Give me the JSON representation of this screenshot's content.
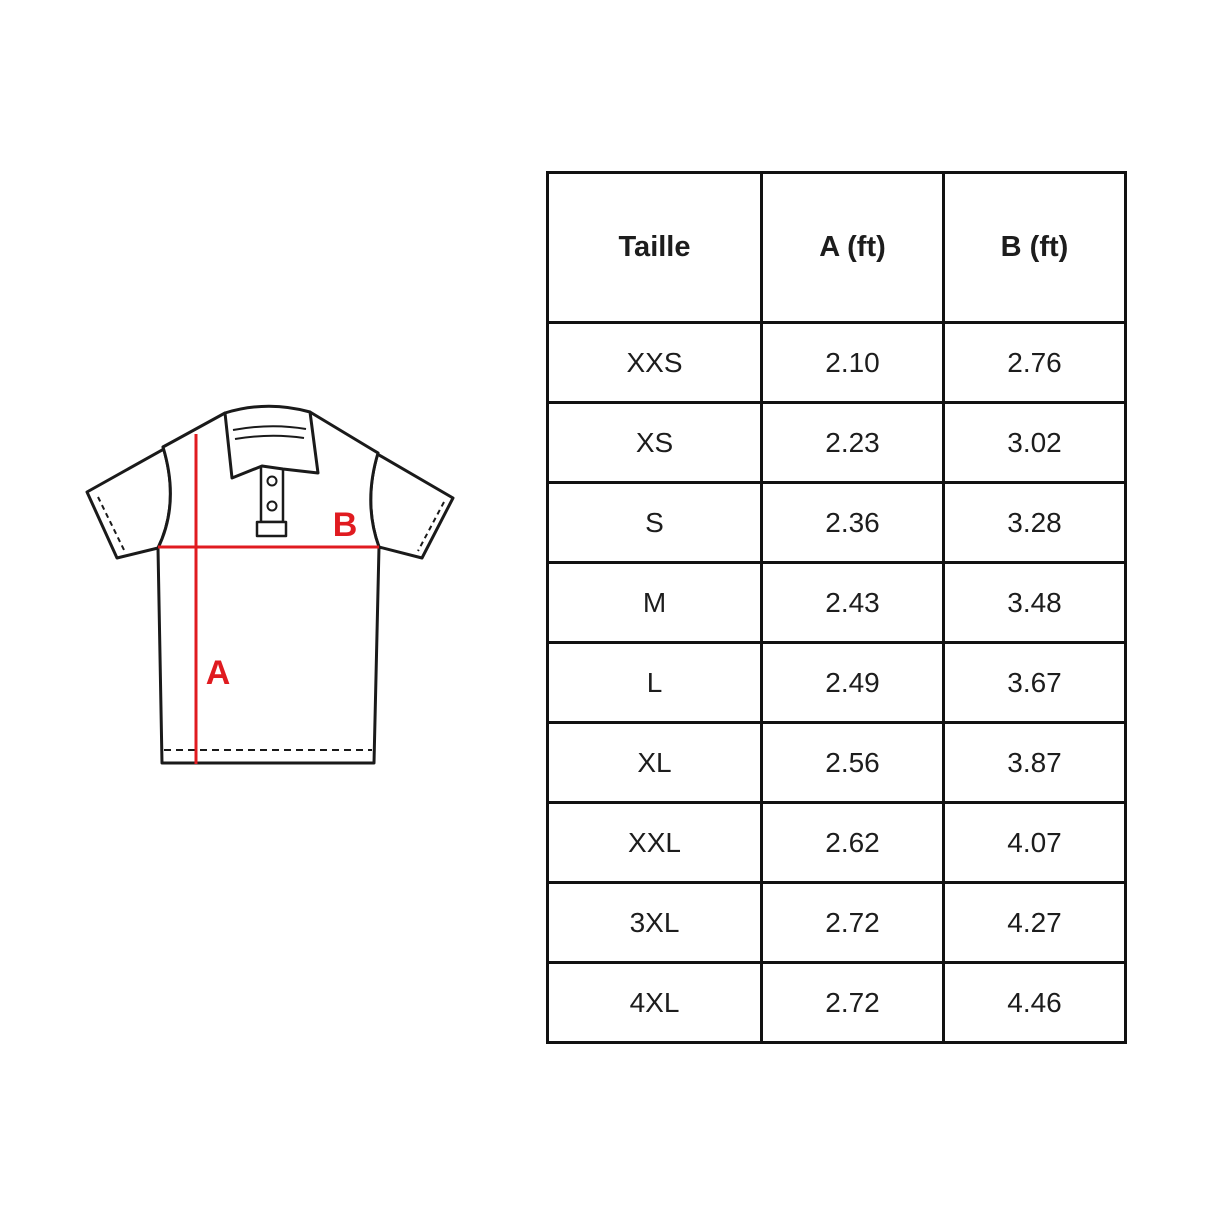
{
  "page": {
    "background": "#ffffff"
  },
  "diagram": {
    "name": "polo-shirt-measurement-diagram",
    "label_a": "A",
    "label_b": "B",
    "accent_color": "#e01b20",
    "line_color": "#1a1a1a"
  },
  "chart_data": {
    "type": "table",
    "title": "",
    "columns": [
      "Taille",
      "A (ft)",
      "B (ft)"
    ],
    "rows": [
      [
        "XXS",
        "2.10",
        "2.76"
      ],
      [
        "XS",
        "2.23",
        "3.02"
      ],
      [
        "S",
        "2.36",
        "3.28"
      ],
      [
        "M",
        "2.43",
        "3.48"
      ],
      [
        "L",
        "2.49",
        "3.67"
      ],
      [
        "XL",
        "2.56",
        "3.87"
      ],
      [
        "XXL",
        "2.62",
        "4.07"
      ],
      [
        "3XL",
        "2.72",
        "4.27"
      ],
      [
        "4XL",
        "2.72",
        "4.46"
      ]
    ]
  }
}
